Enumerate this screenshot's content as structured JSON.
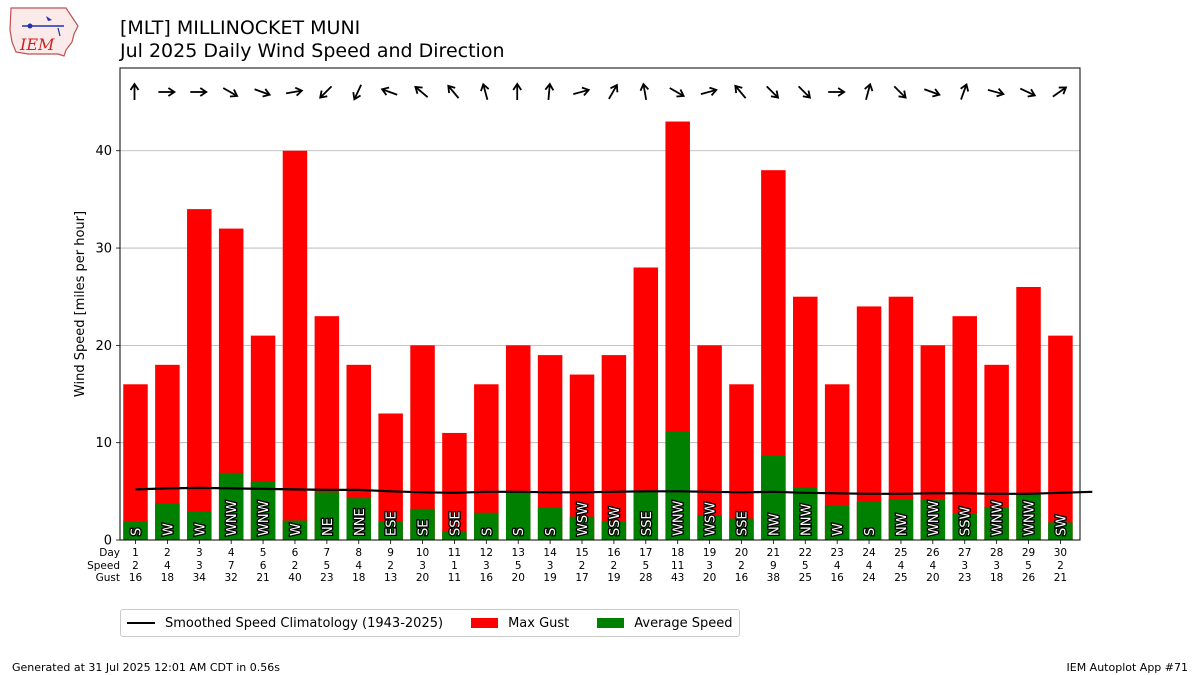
{
  "header": {
    "title_line1": "[MLT] MILLINOCKET MUNI",
    "title_line2": "Jul 2025 Daily Wind Speed and Direction",
    "logo_text": "IEM"
  },
  "chart_data": {
    "type": "bar",
    "ylabel": "Wind Speed [miles per hour]",
    "ylim": [
      0,
      48.5
    ],
    "yticks": [
      0,
      10,
      20,
      30,
      40
    ],
    "grid": "horizontal",
    "row_labels": [
      "Day",
      "Speed",
      "Gust"
    ],
    "days": [
      1,
      2,
      3,
      4,
      5,
      6,
      7,
      8,
      9,
      10,
      11,
      12,
      13,
      14,
      15,
      16,
      17,
      18,
      19,
      20,
      21,
      22,
      23,
      24,
      25,
      26,
      27,
      28,
      29,
      30
    ],
    "speed_label": [
      2,
      4,
      3,
      7,
      6,
      2,
      5,
      4,
      2,
      3,
      1,
      3,
      5,
      3,
      2,
      2,
      5,
      11,
      3,
      2,
      9,
      5,
      4,
      4,
      4,
      4,
      3,
      3,
      5,
      2
    ],
    "gust": [
      16,
      18,
      34,
      32,
      21,
      40,
      23,
      18,
      13,
      20,
      11,
      16,
      20,
      19,
      17,
      19,
      28,
      43,
      20,
      16,
      38,
      25,
      16,
      24,
      25,
      20,
      23,
      18,
      26,
      21
    ],
    "avg_speed": [
      1.9,
      3.8,
      2.9,
      6.9,
      6.0,
      2.0,
      4.9,
      4.3,
      1.9,
      3.2,
      0.9,
      2.8,
      5.0,
      3.3,
      2.4,
      1.9,
      5.0,
      11.1,
      2.5,
      2.2,
      8.7,
      5.4,
      3.6,
      3.9,
      4.2,
      4.1,
      2.7,
      3.4,
      4.8,
      1.8
    ],
    "direction": [
      "S",
      "W",
      "W",
      "WNW",
      "WNW",
      "W",
      "NE",
      "NNE",
      "ESE",
      "SE",
      "SSE",
      "S",
      "S",
      "S",
      "WSW",
      "SSW",
      "SSE",
      "WNW",
      "WSW",
      "SSE",
      "NW",
      "NNW",
      "W",
      "S",
      "NW",
      "WNW",
      "SSW",
      "WNW",
      "WNW",
      "SW"
    ],
    "arrow_angle": [
      0,
      90,
      90,
      120,
      110,
      80,
      225,
      205,
      290,
      310,
      320,
      345,
      0,
      5,
      75,
      30,
      350,
      120,
      75,
      320,
      135,
      135,
      90,
      15,
      135,
      110,
      20,
      105,
      115,
      55
    ],
    "climatology": [
      5.2,
      5.3,
      5.35,
      5.3,
      5.25,
      5.2,
      5.15,
      5.15,
      5.0,
      4.9,
      4.85,
      4.95,
      4.95,
      4.9,
      4.9,
      4.95,
      5.0,
      5.0,
      4.95,
      4.9,
      4.95,
      4.85,
      4.8,
      4.75,
      4.75,
      4.8,
      4.8,
      4.75,
      4.75,
      4.85,
      4.95
    ],
    "series": [
      {
        "name": "Smoothed Speed Climatology (1943-2025)",
        "color": "#000000"
      },
      {
        "name": "Max Gust",
        "color": "#ff0000"
      },
      {
        "name": "Average Speed",
        "color": "#008000"
      }
    ]
  },
  "footer": {
    "left": "Generated at 31 Jul 2025 12:01 AM CDT in 0.56s",
    "right": "IEM Autoplot App #71"
  }
}
